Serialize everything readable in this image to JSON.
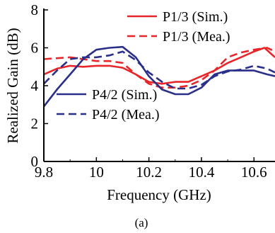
{
  "caption": "(a)",
  "chart_data": {
    "type": "line",
    "title": "",
    "xlabel": "Frequency (GHz)",
    "ylabel": "Realized Gain (dB)",
    "xlim": [
      9.8,
      10.68
    ],
    "ylim": [
      0,
      8
    ],
    "xticks": [
      "9.8",
      "10",
      "10.2",
      "10.4",
      "10.6"
    ],
    "yticks": [
      "0",
      "2",
      "4",
      "6",
      "8"
    ],
    "grid": false,
    "legend_placement": [
      "top-right",
      "bottom-left"
    ],
    "series": [
      {
        "name": "P1/3 (Sim.)",
        "color": "#e8262a",
        "dash": "solid",
        "x": [
          9.8,
          9.85,
          9.9,
          9.95,
          10.0,
          10.05,
          10.1,
          10.15,
          10.2,
          10.25,
          10.3,
          10.35,
          10.4,
          10.45,
          10.5,
          10.55,
          10.6,
          10.64,
          10.68
        ],
        "y": [
          4.6,
          4.9,
          5.05,
          5.0,
          5.05,
          5.05,
          4.95,
          4.6,
          4.2,
          4.1,
          4.2,
          4.2,
          4.5,
          4.8,
          5.2,
          5.5,
          5.8,
          6.0,
          5.5
        ]
      },
      {
        "name": "P1/3 (Mea.)",
        "color": "#e8262a",
        "dash": "dashed",
        "x": [
          9.8,
          9.85,
          9.9,
          9.95,
          10.0,
          10.05,
          10.1,
          10.15,
          10.2,
          10.25,
          10.3,
          10.35,
          10.4,
          10.45,
          10.5,
          10.55,
          10.6,
          10.65,
          10.68
        ],
        "y": [
          5.4,
          5.45,
          5.5,
          5.4,
          5.3,
          5.3,
          5.2,
          4.6,
          4.1,
          3.9,
          3.9,
          4.0,
          4.3,
          4.8,
          5.5,
          5.75,
          5.9,
          6.0,
          5.8
        ]
      },
      {
        "name": "P4/2 (Sim.)",
        "color": "#2a2f8a",
        "dash": "solid",
        "x": [
          9.8,
          9.85,
          9.9,
          9.95,
          10.0,
          10.05,
          10.1,
          10.15,
          10.2,
          10.25,
          10.3,
          10.35,
          10.4,
          10.45,
          10.5,
          10.55,
          10.6,
          10.65,
          10.68
        ],
        "y": [
          2.9,
          3.8,
          4.6,
          5.4,
          5.9,
          6.0,
          6.05,
          5.5,
          4.5,
          3.8,
          3.55,
          3.55,
          3.9,
          4.6,
          4.8,
          4.8,
          4.8,
          4.6,
          4.5
        ]
      },
      {
        "name": "P4/2 (Mea.)",
        "color": "#2a2f8a",
        "dash": "dashed",
        "x": [
          9.8,
          9.85,
          9.9,
          9.95,
          10.0,
          10.05,
          10.1,
          10.15,
          10.2,
          10.25,
          10.3,
          10.35,
          10.4,
          10.45,
          10.5,
          10.55,
          10.6,
          10.65,
          10.68
        ],
        "y": [
          4.1,
          4.8,
          5.4,
          5.5,
          5.5,
          5.6,
          5.8,
          5.35,
          4.7,
          4.2,
          3.85,
          3.85,
          4.05,
          4.5,
          4.75,
          4.85,
          5.05,
          4.9,
          4.7
        ]
      }
    ],
    "legend_groups": [
      [
        0,
        1
      ],
      [
        2,
        3
      ]
    ]
  }
}
